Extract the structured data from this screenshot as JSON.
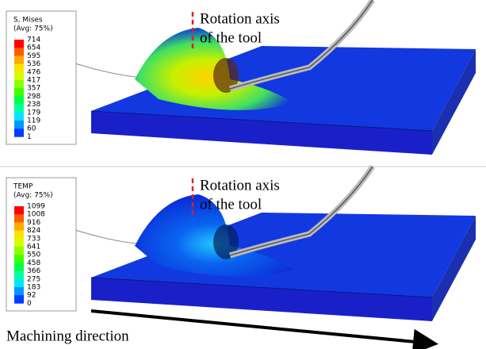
{
  "panels": [
    {
      "legend": {
        "title": [
          "S, Mises",
          "(Avg: 75%)"
        ],
        "values": [
          714,
          654,
          595,
          536,
          476,
          417,
          357,
          298,
          238,
          179,
          119,
          60,
          1
        ]
      },
      "annotation": [
        "Rotation axis",
        "of the tool"
      ]
    },
    {
      "legend": {
        "title": [
          "TEMP",
          "(Avg: 75%)"
        ],
        "values": [
          1099,
          1008,
          916,
          824,
          733,
          641,
          550,
          458,
          366,
          275,
          183,
          92,
          0
        ]
      },
      "annotation": [
        "Rotation axis",
        "of the tool"
      ]
    }
  ],
  "caption": "Machining direction"
}
